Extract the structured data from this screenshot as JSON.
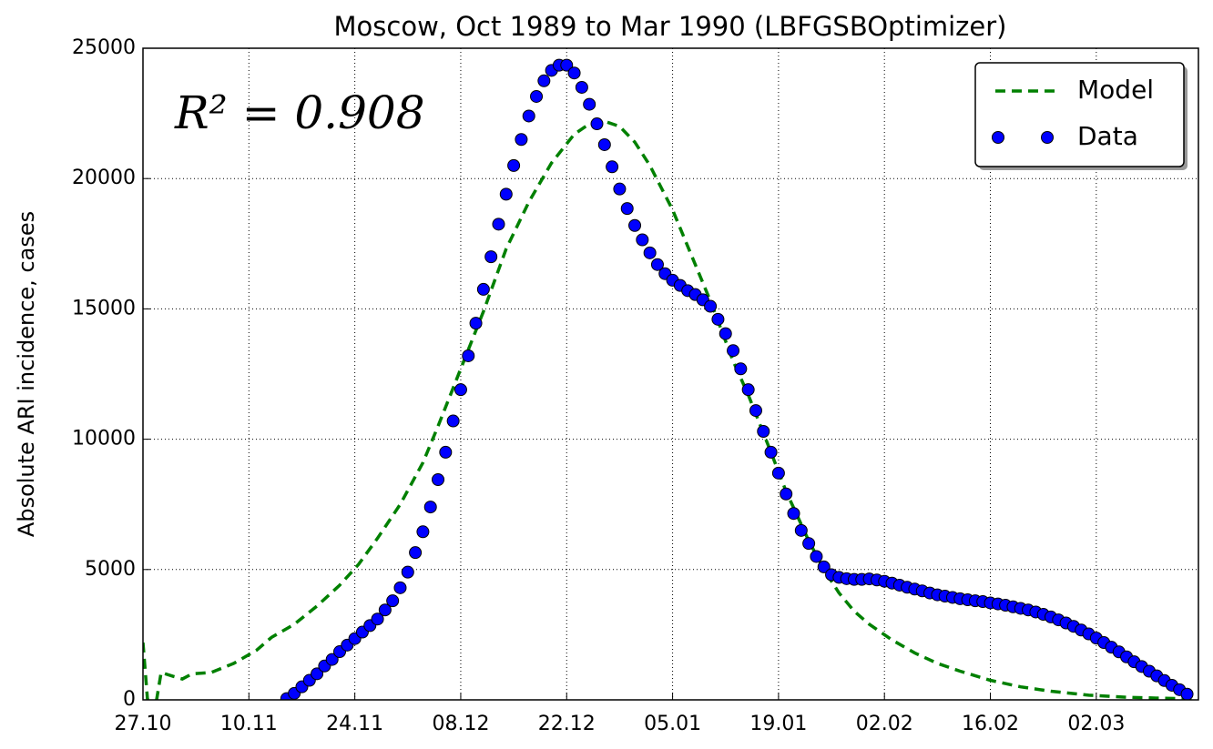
{
  "chart_data": {
    "type": "line",
    "title": "Moscow, Oct 1989 to Mar 1990 (LBFGSBOptimizer)",
    "ylabel": "Absolute ARI incidence, cases",
    "annotation": "R² = 0.908",
    "xlim": [
      0,
      139.5
    ],
    "xticks": [
      {
        "value": 0,
        "label": "27.10"
      },
      {
        "value": 14,
        "label": "10.11"
      },
      {
        "value": 28,
        "label": "24.11"
      },
      {
        "value": 42,
        "label": "08.12"
      },
      {
        "value": 56,
        "label": "22.12"
      },
      {
        "value": 70,
        "label": "05.01"
      },
      {
        "value": 84,
        "label": "19.01"
      },
      {
        "value": 98,
        "label": "02.02"
      },
      {
        "value": 112,
        "label": "16.02"
      },
      {
        "value": 126,
        "label": "02.03"
      }
    ],
    "ylim": [
      0,
      25000
    ],
    "yticks": [
      0,
      5000,
      10000,
      15000,
      20000,
      25000
    ],
    "grid": true,
    "legend": "upper right",
    "series": [
      {
        "name": "Model",
        "color": "#008000",
        "style": "dashed",
        "x": [
          0,
          0.6,
          1.8,
          2.4,
          4,
          5.2,
          6.5,
          9,
          12,
          15,
          17,
          20,
          23,
          26,
          28.5,
          31,
          34,
          37,
          39,
          42,
          45,
          48,
          51,
          54,
          57,
          59,
          61,
          63,
          65,
          67,
          70,
          73,
          75,
          78,
          80,
          83,
          85,
          88,
          90,
          92,
          94,
          96,
          99,
          102,
          105,
          108,
          112,
          116,
          120,
          125,
          130,
          135,
          139.5
        ],
        "values": [
          2200,
          0,
          0,
          1050,
          900,
          800,
          1000,
          1050,
          1400,
          1900,
          2400,
          2900,
          3600,
          4400,
          5200,
          6200,
          7500,
          9100,
          10500,
          12700,
          14900,
          17300,
          19100,
          20600,
          21700,
          22100,
          22200,
          22000,
          21400,
          20500,
          18800,
          16700,
          15300,
          13000,
          11700,
          9500,
          8000,
          6100,
          5000,
          4100,
          3400,
          2900,
          2300,
          1800,
          1400,
          1100,
          750,
          500,
          330,
          180,
          100,
          60,
          40
        ]
      },
      {
        "name": "Data",
        "color": "#0000ff",
        "style": "markers",
        "x": [
          19,
          20,
          21,
          22,
          23,
          24,
          25,
          26,
          27,
          28,
          29,
          30,
          31,
          32,
          33,
          34,
          35,
          36,
          37,
          38,
          39,
          40,
          41,
          42,
          43,
          44,
          45,
          46,
          47,
          48,
          49,
          50,
          51,
          52,
          53,
          54,
          55,
          56,
          57,
          58,
          59,
          60,
          61,
          62,
          63,
          64,
          65,
          66,
          67,
          68,
          69,
          70,
          71,
          72,
          73,
          74,
          75,
          76,
          77,
          78,
          79,
          80,
          81,
          82,
          83,
          84,
          85,
          86,
          87,
          88,
          89,
          90,
          91,
          92,
          93,
          94,
          95,
          96,
          97,
          98,
          99,
          100,
          101,
          102,
          103,
          104,
          105,
          106,
          107,
          108,
          109,
          110,
          111,
          112,
          113,
          114,
          115,
          116,
          117,
          118,
          119,
          120,
          121,
          122,
          123,
          124,
          125,
          126,
          127,
          128,
          129,
          130,
          131,
          132,
          133,
          134,
          135,
          136,
          137,
          138
        ],
        "values": [
          50,
          250,
          500,
          750,
          1000,
          1300,
          1550,
          1850,
          2100,
          2350,
          2600,
          2850,
          3100,
          3450,
          3800,
          4300,
          4900,
          5650,
          6450,
          7400,
          8450,
          9500,
          10700,
          11900,
          13200,
          14450,
          15750,
          17000,
          18250,
          19400,
          20500,
          21500,
          22400,
          23150,
          23750,
          24150,
          24350,
          24350,
          24050,
          23500,
          22850,
          22100,
          21300,
          20450,
          19600,
          18850,
          18200,
          17650,
          17150,
          16700,
          16350,
          16100,
          15900,
          15700,
          15550,
          15350,
          15100,
          14600,
          14050,
          13400,
          12700,
          11900,
          11100,
          10300,
          9500,
          8700,
          7900,
          7150,
          6500,
          6000,
          5500,
          5100,
          4800,
          4700,
          4650,
          4620,
          4620,
          4640,
          4600,
          4550,
          4480,
          4400,
          4320,
          4250,
          4180,
          4100,
          4030,
          3980,
          3930,
          3880,
          3840,
          3800,
          3770,
          3720,
          3680,
          3630,
          3570,
          3510,
          3450,
          3370,
          3280,
          3180,
          3070,
          2950,
          2820,
          2680,
          2530,
          2370,
          2200,
          2020,
          1840,
          1650,
          1460,
          1280,
          1100,
          920,
          740,
          560,
          390,
          220
        ]
      }
    ]
  }
}
